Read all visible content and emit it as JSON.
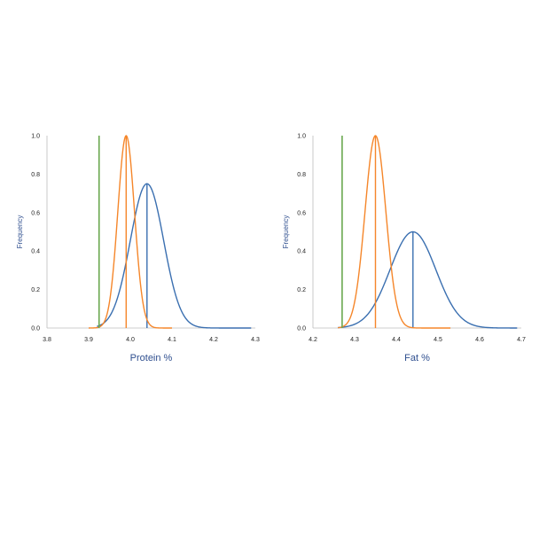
{
  "chart_data": [
    {
      "type": "line",
      "xlabel": "Protein %",
      "ylabel": "Frequency",
      "xlim": [
        3.8,
        4.3
      ],
      "ylim": [
        0.0,
        1.0
      ],
      "xticks": [
        "3.8",
        "3.9",
        "4.0",
        "4.1",
        "4.2",
        "4.3"
      ],
      "yticks": [
        "0.0",
        "0.2",
        "0.4",
        "0.6",
        "0.8",
        "1.0"
      ],
      "grid": false,
      "series": [
        {
          "kind": "normal",
          "color": "#3a6fb0",
          "mean": 4.04,
          "sd": 0.04,
          "peak": 0.75,
          "x_range": [
            3.92,
            4.29
          ],
          "mean_line": 4.04
        },
        {
          "kind": "normal",
          "color": "#f5862a",
          "mean": 3.99,
          "sd": 0.02,
          "peak": 1.0,
          "x_range": [
            3.9,
            4.1
          ],
          "mean_line": 3.99
        },
        {
          "kind": "vline",
          "color": "#6aa84f",
          "x": 3.925,
          "y": 1.0
        }
      ]
    },
    {
      "type": "line",
      "xlabel": "Fat %",
      "ylabel": "Frequency",
      "xlim": [
        4.2,
        4.7
      ],
      "ylim": [
        0.0,
        1.0
      ],
      "xticks": [
        "4.2",
        "4.3",
        "4.4",
        "4.5",
        "4.6",
        "4.7"
      ],
      "yticks": [
        "0.0",
        "0.2",
        "0.4",
        "0.6",
        "0.8",
        "1.0"
      ],
      "grid": false,
      "series": [
        {
          "kind": "normal",
          "color": "#3a6fb0",
          "mean": 4.44,
          "sd": 0.055,
          "peak": 0.5,
          "x_range": [
            4.26,
            4.69
          ],
          "mean_line": 4.44
        },
        {
          "kind": "normal",
          "color": "#f5862a",
          "mean": 4.35,
          "sd": 0.025,
          "peak": 1.0,
          "x_range": [
            4.26,
            4.53
          ],
          "mean_line": 4.35
        },
        {
          "kind": "vline",
          "color": "#6aa84f",
          "x": 4.27,
          "y": 1.0
        }
      ]
    }
  ]
}
